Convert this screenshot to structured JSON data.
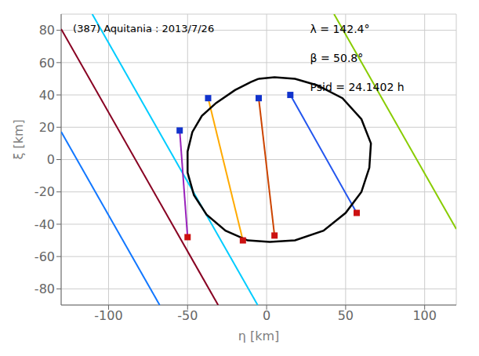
{
  "chart_data": {
    "type": "line",
    "title": "(387) Aquitania : 2013/7/26",
    "xlabel": "η [km]",
    "ylabel": "ξ [km]",
    "xlim": [
      -130,
      120
    ],
    "ylim": [
      -90,
      90
    ],
    "xticks": [
      -100,
      -50,
      0,
      50,
      100
    ],
    "yticks": [
      -80,
      -60,
      -40,
      -20,
      0,
      20,
      40,
      60,
      80
    ],
    "grid": true,
    "annotations": [
      "λ = 142.4°",
      "β = 50.8°",
      "Psid = 24.1402 h"
    ],
    "series": [
      {
        "type": "line",
        "color": "#1177ff",
        "x": [
          -130,
          -67.6744
        ],
        "values": [
          17.2,
          -90
        ]
      },
      {
        "type": "line",
        "color": "#880022",
        "x": [
          -130,
          -30.6744
        ],
        "values": [
          80.84,
          -90
        ]
      },
      {
        "type": "line",
        "color": "#00ccff",
        "x": [
          -110.3256,
          -5.6744
        ],
        "values": [
          90,
          -90
        ]
      },
      {
        "type": "line",
        "color": "#88cc00",
        "x": [
          42.6744,
          120
        ],
        "values": [
          90,
          -43
        ]
      },
      {
        "type": "line",
        "color": "#9922bb",
        "x": [
          -55,
          -50
        ],
        "values": [
          18,
          -48
        ]
      },
      {
        "type": "line",
        "color": "#ffaa00",
        "x": [
          -37,
          -15
        ],
        "values": [
          38,
          -50
        ]
      },
      {
        "type": "line",
        "color": "#cc4400",
        "x": [
          -5,
          5
        ],
        "values": [
          38,
          -47
        ]
      },
      {
        "type": "line",
        "color": "#2255ee",
        "x": [
          15,
          57
        ],
        "values": [
          40,
          -33
        ]
      },
      {
        "type": "line",
        "color": "#000000",
        "x": [
          -5,
          5,
          18,
          32,
          48,
          60,
          66,
          65,
          60,
          50,
          36,
          18,
          2,
          -12,
          -26,
          -38,
          -46,
          -50,
          -50,
          -47,
          -41,
          -32,
          -20,
          -10,
          -5
        ],
        "values": [
          50,
          51,
          50,
          46,
          38,
          25,
          10,
          -5,
          -20,
          -33,
          -44,
          -50,
          -51,
          -50,
          -44,
          -34,
          -22,
          -8,
          5,
          17,
          27,
          35,
          43,
          48,
          50
        ]
      },
      {
        "type": "scatter",
        "marker": "square",
        "color": "#1133cc",
        "x": [
          -55,
          -37,
          -5,
          15
        ],
        "values": [
          18,
          38,
          38,
          40
        ]
      },
      {
        "type": "scatter",
        "marker": "square",
        "color": "#cc1111",
        "x": [
          -50,
          -15,
          5,
          57
        ],
        "values": [
          -48,
          -50,
          -47,
          -33
        ]
      }
    ]
  }
}
